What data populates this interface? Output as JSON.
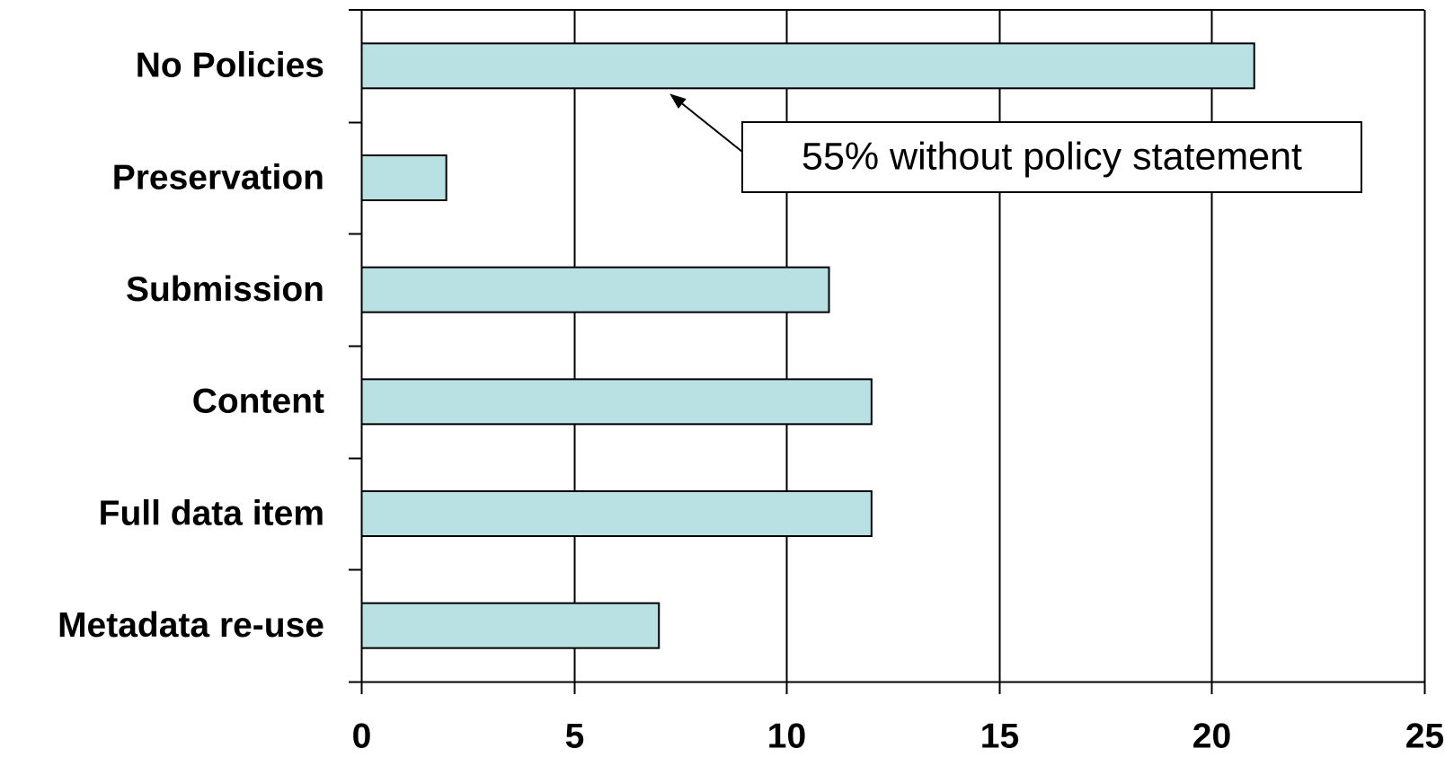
{
  "chart_data": {
    "type": "bar",
    "orientation": "horizontal",
    "categories": [
      "No Policies",
      "Preservation",
      "Submission",
      "Content",
      "Full data item",
      "Metadata re-use"
    ],
    "values": [
      21,
      2,
      11,
      12,
      12,
      7
    ],
    "title": "",
    "xlabel": "",
    "ylabel": "",
    "xlim": [
      0,
      25
    ],
    "x_ticks": [
      "0",
      "5",
      "10",
      "15",
      "20",
      "25"
    ],
    "grid": "vertical",
    "annotations": [
      {
        "text": "55% without policy statement",
        "points_to_category": "No Policies",
        "points_to_value": 7
      }
    ]
  },
  "colors": {
    "bar_fill": "#b9e0e3",
    "bar_stroke": "#000000",
    "grid": "#000000"
  }
}
